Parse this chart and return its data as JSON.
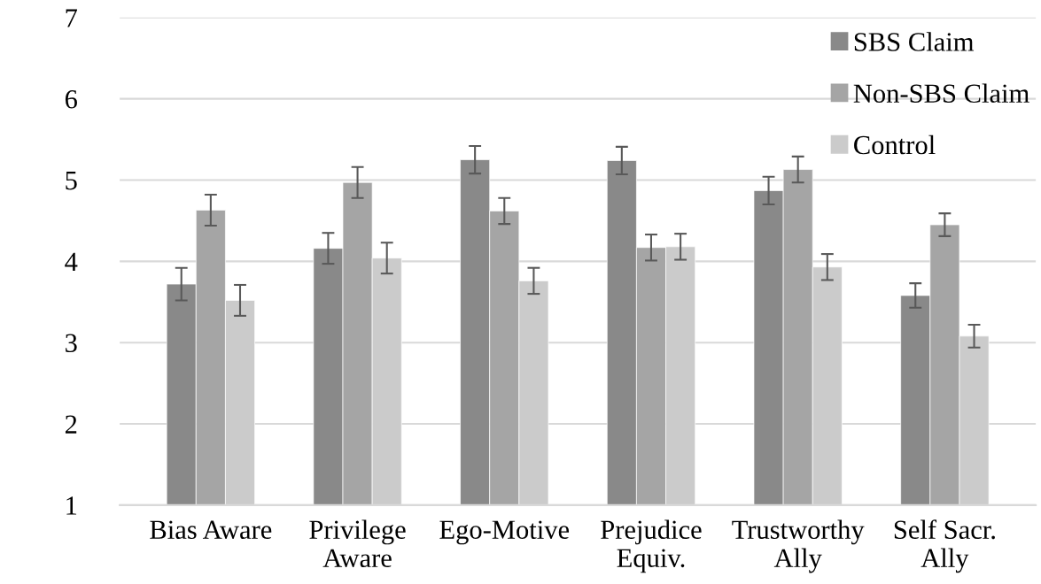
{
  "chart_data": {
    "type": "bar",
    "categories": [
      "Bias Aware",
      "Privilege\nAware",
      "Ego-Motive",
      "Prejudice\nEquiv.",
      "Trustworthy\nAlly",
      "Self Sacr.\nAlly"
    ],
    "series": [
      {
        "name": "SBS Claim",
        "color": "#898989",
        "values": [
          3.72,
          4.16,
          5.25,
          5.24,
          4.87,
          3.58
        ],
        "errors": [
          0.2,
          0.19,
          0.17,
          0.17,
          0.17,
          0.15
        ]
      },
      {
        "name": "Non-SBS Claim",
        "color": "#a5a5a5",
        "values": [
          4.63,
          4.97,
          4.62,
          4.17,
          5.13,
          4.45
        ],
        "errors": [
          0.19,
          0.19,
          0.16,
          0.16,
          0.16,
          0.14
        ]
      },
      {
        "name": "Control",
        "color": "#cbcbcb",
        "values": [
          3.52,
          4.04,
          3.76,
          4.18,
          3.93,
          3.08
        ],
        "errors": [
          0.19,
          0.19,
          0.16,
          0.16,
          0.16,
          0.14
        ]
      }
    ],
    "ylim": [
      1,
      7
    ],
    "yticks": [
      1,
      2,
      3,
      4,
      5,
      6,
      7
    ],
    "grid": "y",
    "legend": "top right"
  }
}
